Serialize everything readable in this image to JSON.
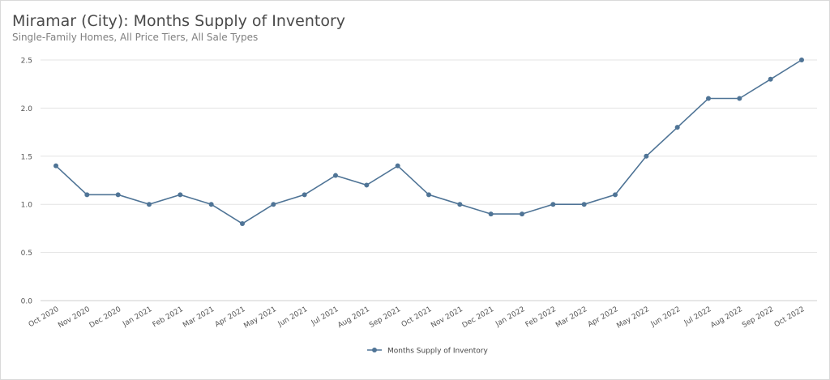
{
  "chart_data": {
    "type": "line",
    "title": "Miramar (City): Months Supply of Inventory",
    "subtitle": "Single-Family Homes, All Price Tiers, All Sale Types",
    "categories": [
      "Oct 2020",
      "Nov 2020",
      "Dec 2020",
      "Jan 2021",
      "Feb 2021",
      "Mar 2021",
      "Apr 2021",
      "May 2021",
      "Jun 2021",
      "Jul 2021",
      "Aug 2021",
      "Sep 2021",
      "Oct 2021",
      "Nov 2021",
      "Dec 2021",
      "Jan 2022",
      "Feb 2022",
      "Mar 2022",
      "Apr 2022",
      "May 2022",
      "Jun 2022",
      "Jul 2022",
      "Aug 2022",
      "Sep 2022",
      "Oct 2022"
    ],
    "series": [
      {
        "name": "Months Supply of Inventory",
        "values": [
          1.4,
          1.1,
          1.1,
          1.0,
          1.1,
          1.0,
          0.8,
          1.0,
          1.1,
          1.3,
          1.2,
          1.4,
          1.1,
          1.0,
          0.9,
          0.9,
          1.0,
          1.0,
          1.1,
          1.5,
          1.8,
          2.1,
          2.1,
          2.3,
          2.5
        ]
      }
    ],
    "y_ticks": [
      "0.0",
      "0.5",
      "1.0",
      "1.5",
      "2.0",
      "2.5"
    ],
    "ylim": [
      0,
      2.5
    ],
    "grid": true,
    "legend_position": "bottom-center",
    "colors": {
      "line": "#4f7496",
      "grid": "#e3e3e3"
    }
  }
}
